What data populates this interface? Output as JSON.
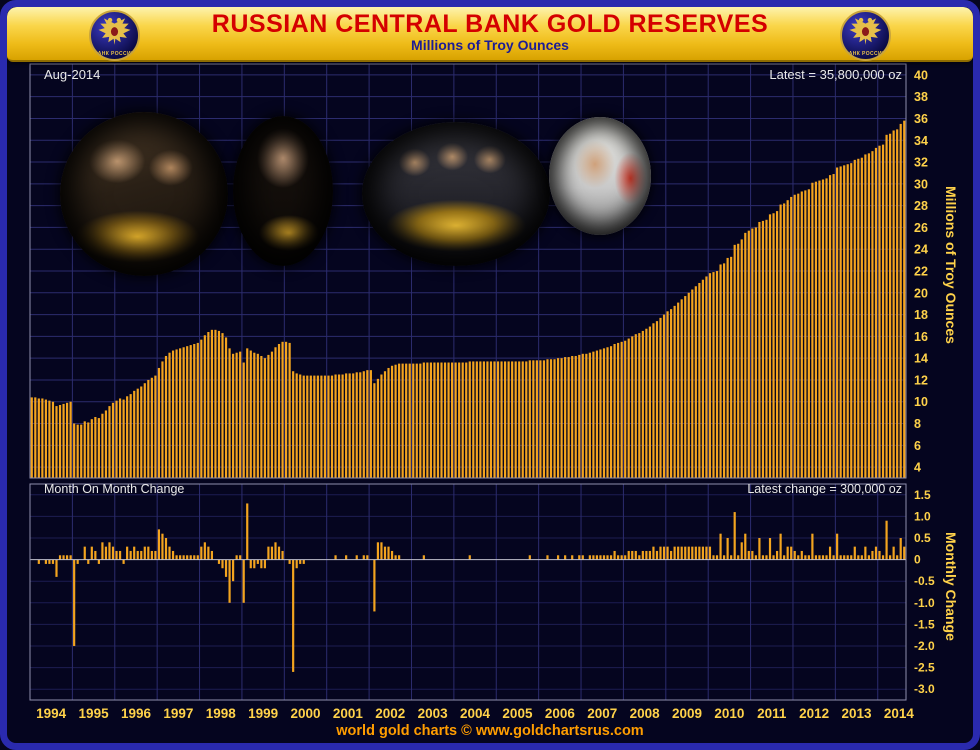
{
  "header": {
    "title": "RUSSIAN CENTRAL BANK GOLD RESERVES",
    "subtitle": "Millions of Troy Ounces",
    "logo_text": "БАНК РОССИИ"
  },
  "main_chart": {
    "date_label": "Aug-2014",
    "latest_label": "Latest = 35,800,000 oz",
    "y_axis_title": "Millions of Troy Ounces",
    "y_ticks": [
      "40",
      "38",
      "36",
      "34",
      "32",
      "30",
      "28",
      "26",
      "24",
      "22",
      "20",
      "18",
      "16",
      "14",
      "12",
      "10",
      "8",
      "6",
      "4"
    ]
  },
  "change_chart": {
    "title": "Month On Month Change",
    "latest_label": "Latest change = 300,000 oz",
    "y_axis_title": "Monthly Change",
    "y_ticks": [
      "1.5",
      "1.0",
      "0.5",
      "0",
      "-0.5",
      "-1.0",
      "-1.5",
      "-2.0",
      "-2.5",
      "-3.0"
    ]
  },
  "x_axis": {
    "years": [
      "1994",
      "1995",
      "1996",
      "1997",
      "1998",
      "1999",
      "2000",
      "2001",
      "2002",
      "2003",
      "2004",
      "2005",
      "2006",
      "2007",
      "2008",
      "2009",
      "2010",
      "2011",
      "2012",
      "2013",
      "2014"
    ]
  },
  "footer": {
    "credit": "world gold charts © www.goldchartsrus.com"
  },
  "photos": [
    {
      "description": "official handling stacked gold bars"
    },
    {
      "description": "Vladimir Putin examining a gold bar"
    },
    {
      "description": "group of officials holding a large gold bar"
    },
    {
      "description": "Dmitry Medvedev holding a gold coin"
    }
  ],
  "colors": {
    "bar": "#f3a41f",
    "axis_text": "#ffd24a",
    "grid": "#2c2c6e",
    "grid_faint": "#1d1d52",
    "zero_line": "#c0c0cc",
    "plot_border": "#8f8fae",
    "chart_bg": "#05051f",
    "frame_blue": "#2a2aae",
    "header_gold": "#f0bc1a",
    "title_red": "#d40000",
    "subtitle_blue": "#1c1c96",
    "label_white": "#e9e9e9",
    "footer_orange": "#ff9d00"
  },
  "chart_data": [
    {
      "type": "bar",
      "title": "Russian Central Bank Gold Reserves",
      "ylabel": "Millions of Troy Ounces",
      "period": "Jan 1994 - Aug 2014",
      "frequency": "monthly",
      "ylim": [
        3,
        41
      ],
      "latest_value": 35.8,
      "annotation": "Latest = 35,800,000 oz",
      "monthly_values": [
        10.4,
        10.4,
        10.3,
        10.3,
        10.2,
        10.1,
        10.0,
        9.6,
        9.7,
        9.8,
        9.9,
        10.0,
        8.0,
        7.9,
        7.9,
        8.2,
        8.1,
        8.4,
        8.6,
        8.5,
        8.9,
        9.2,
        9.6,
        9.9,
        10.1,
        10.3,
        10.2,
        10.5,
        10.7,
        11.0,
        11.2,
        11.4,
        11.7,
        12.0,
        12.2,
        12.4,
        13.1,
        13.7,
        14.2,
        14.5,
        14.7,
        14.8,
        14.9,
        15.0,
        15.1,
        15.2,
        15.3,
        15.4,
        15.7,
        16.1,
        16.4,
        16.6,
        16.6,
        16.5,
        16.3,
        15.9,
        14.9,
        14.4,
        14.5,
        14.6,
        13.6,
        14.9,
        14.7,
        14.5,
        14.4,
        14.2,
        14.0,
        14.3,
        14.6,
        15.0,
        15.3,
        15.5,
        15.5,
        15.4,
        12.8,
        12.6,
        12.5,
        12.4,
        12.4,
        12.4,
        12.4,
        12.4,
        12.4,
        12.4,
        12.4,
        12.4,
        12.5,
        12.5,
        12.5,
        12.6,
        12.6,
        12.6,
        12.7,
        12.7,
        12.8,
        12.9,
        12.9,
        11.7,
        12.1,
        12.5,
        12.8,
        13.1,
        13.3,
        13.4,
        13.5,
        13.5,
        13.5,
        13.5,
        13.5,
        13.5,
        13.5,
        13.6,
        13.6,
        13.6,
        13.6,
        13.6,
        13.6,
        13.6,
        13.6,
        13.6,
        13.6,
        13.6,
        13.6,
        13.6,
        13.7,
        13.7,
        13.7,
        13.7,
        13.7,
        13.7,
        13.7,
        13.7,
        13.7,
        13.7,
        13.7,
        13.7,
        13.7,
        13.7,
        13.7,
        13.7,
        13.7,
        13.8,
        13.8,
        13.8,
        13.8,
        13.8,
        13.9,
        13.9,
        13.9,
        14.0,
        14.0,
        14.1,
        14.1,
        14.2,
        14.2,
        14.3,
        14.4,
        14.4,
        14.5,
        14.6,
        14.7,
        14.8,
        14.9,
        15.0,
        15.1,
        15.3,
        15.4,
        15.5,
        15.6,
        15.8,
        16.0,
        16.2,
        16.3,
        16.5,
        16.7,
        16.9,
        17.2,
        17.4,
        17.7,
        18.0,
        18.3,
        18.5,
        18.8,
        19.1,
        19.4,
        19.7,
        20.0,
        20.3,
        20.6,
        20.9,
        21.2,
        21.5,
        21.8,
        21.9,
        22.0,
        22.6,
        22.7,
        23.2,
        23.3,
        24.4,
        24.5,
        24.9,
        25.5,
        25.7,
        25.9,
        26.0,
        26.5,
        26.6,
        26.7,
        27.2,
        27.3,
        27.5,
        28.1,
        28.2,
        28.5,
        28.8,
        29.0,
        29.1,
        29.3,
        29.4,
        29.5,
        30.1,
        30.2,
        30.3,
        30.4,
        30.5,
        30.8,
        30.9,
        31.5,
        31.6,
        31.7,
        31.8,
        31.9,
        32.2,
        32.3,
        32.4,
        32.7,
        32.8,
        33.0,
        33.3,
        33.5,
        33.6,
        34.5,
        34.6,
        34.9,
        35.0,
        35.5,
        35.8
      ]
    },
    {
      "type": "bar",
      "title": "Month On Month Change",
      "ylabel": "Monthly Change",
      "ylim": [
        -3.25,
        1.75
      ],
      "latest_change": 0.3,
      "annotation": "Latest change = 300,000 oz",
      "values_derived": "month-over-month first difference of chart_data[0].monthly_values"
    }
  ]
}
